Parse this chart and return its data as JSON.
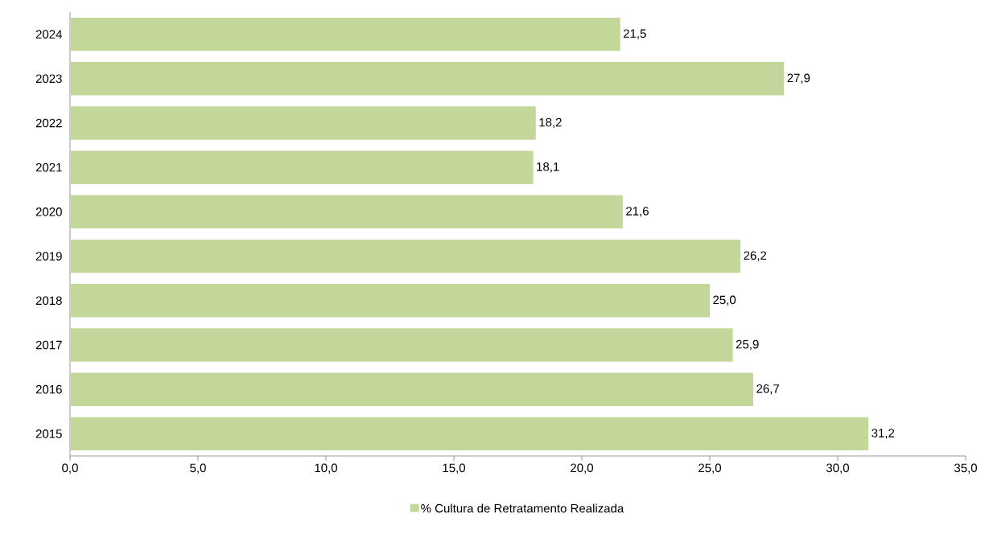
{
  "chart_data": {
    "type": "bar",
    "orientation": "horizontal",
    "categories": [
      "2024",
      "2023",
      "2022",
      "2021",
      "2020",
      "2019",
      "2018",
      "2017",
      "2016",
      "2015"
    ],
    "series": [
      {
        "name": "% Cultura de Retratamento Realizada",
        "color": "#c4d79b",
        "values": [
          21.5,
          27.9,
          18.2,
          18.1,
          21.6,
          26.2,
          25.0,
          25.9,
          26.7,
          31.2
        ],
        "value_labels": [
          "21,5",
          "27,9",
          "18,2",
          "18,1",
          "21,6",
          "26,2",
          "25,0",
          "25,9",
          "26,7",
          "31,2"
        ]
      }
    ],
    "xlim": [
      0,
      35
    ],
    "xticks": [
      {
        "value": 0,
        "label": "0,0"
      },
      {
        "value": 5,
        "label": "5,0"
      },
      {
        "value": 10,
        "label": "10,0"
      },
      {
        "value": 15,
        "label": "15,0"
      },
      {
        "value": 20,
        "label": "20,0"
      },
      {
        "value": 25,
        "label": "25,0"
      },
      {
        "value": 30,
        "label": "30,0"
      },
      {
        "value": 35,
        "label": "35,0"
      }
    ],
    "grid": false,
    "legend": "bottom"
  }
}
